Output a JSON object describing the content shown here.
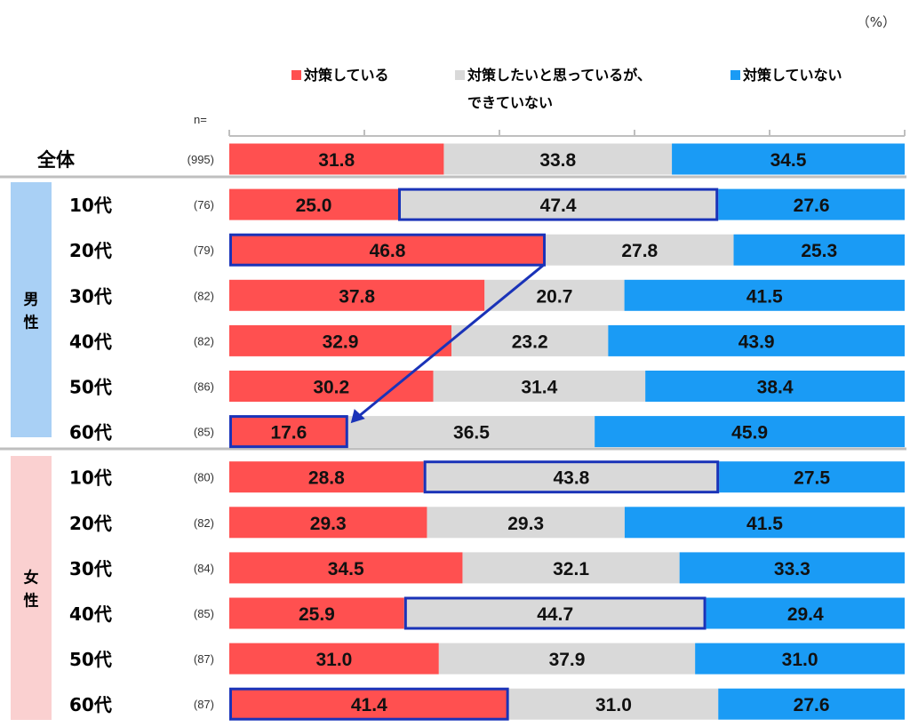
{
  "chart_data": {
    "type": "bar",
    "orientation": "horizontal-stacked-100",
    "unit_label": "（%）",
    "n_label": "n=",
    "xlim": [
      0,
      100
    ],
    "legend": [
      {
        "name": "対策している",
        "color": "#FF5050"
      },
      {
        "name": "対策したいと思っているが、",
        "name2": "できていない",
        "color": "#D9D9D9"
      },
      {
        "name": "対策していない",
        "color": "#1A9BF5"
      }
    ],
    "groups": [
      {
        "label": "",
        "color": "",
        "rows": [
          {
            "label": "全体",
            "n": "(995)",
            "values": [
              31.8,
              33.8,
              34.5
            ]
          }
        ]
      },
      {
        "label": "男性",
        "color": "#A9D0F5",
        "rows": [
          {
            "label": "10代",
            "n": "(76)",
            "values": [
              25.0,
              47.4,
              27.6
            ],
            "highlight": 1
          },
          {
            "label": "20代",
            "n": "(79)",
            "values": [
              46.8,
              27.8,
              25.3
            ],
            "highlight": 0
          },
          {
            "label": "30代",
            "n": "(82)",
            "values": [
              37.8,
              20.7,
              41.5
            ]
          },
          {
            "label": "40代",
            "n": "(82)",
            "values": [
              32.9,
              23.2,
              43.9
            ]
          },
          {
            "label": "50代",
            "n": "(86)",
            "values": [
              30.2,
              31.4,
              38.4
            ]
          },
          {
            "label": "60代",
            "n": "(85)",
            "values": [
              17.6,
              36.5,
              45.9
            ],
            "highlight": 0
          }
        ]
      },
      {
        "label": "女性",
        "color": "#FAD0D0",
        "rows": [
          {
            "label": "10代",
            "n": "(80)",
            "values": [
              28.8,
              43.8,
              27.5
            ],
            "highlight": 1
          },
          {
            "label": "20代",
            "n": "(82)",
            "values": [
              29.3,
              29.3,
              41.5
            ]
          },
          {
            "label": "30代",
            "n": "(84)",
            "values": [
              34.5,
              32.1,
              33.3
            ]
          },
          {
            "label": "40代",
            "n": "(85)",
            "values": [
              25.9,
              44.7,
              29.4
            ],
            "highlight": 1
          },
          {
            "label": "50代",
            "n": "(87)",
            "values": [
              31.0,
              37.9,
              31.0
            ]
          },
          {
            "label": "60代",
            "n": "(87)",
            "values": [
              41.4,
              31.0,
              27.6
            ],
            "highlight": 0
          }
        ]
      }
    ],
    "highlight_color": "#1A33B8",
    "annotation": "arrow from 男性20代 対策している to 男性60代 対策している"
  }
}
